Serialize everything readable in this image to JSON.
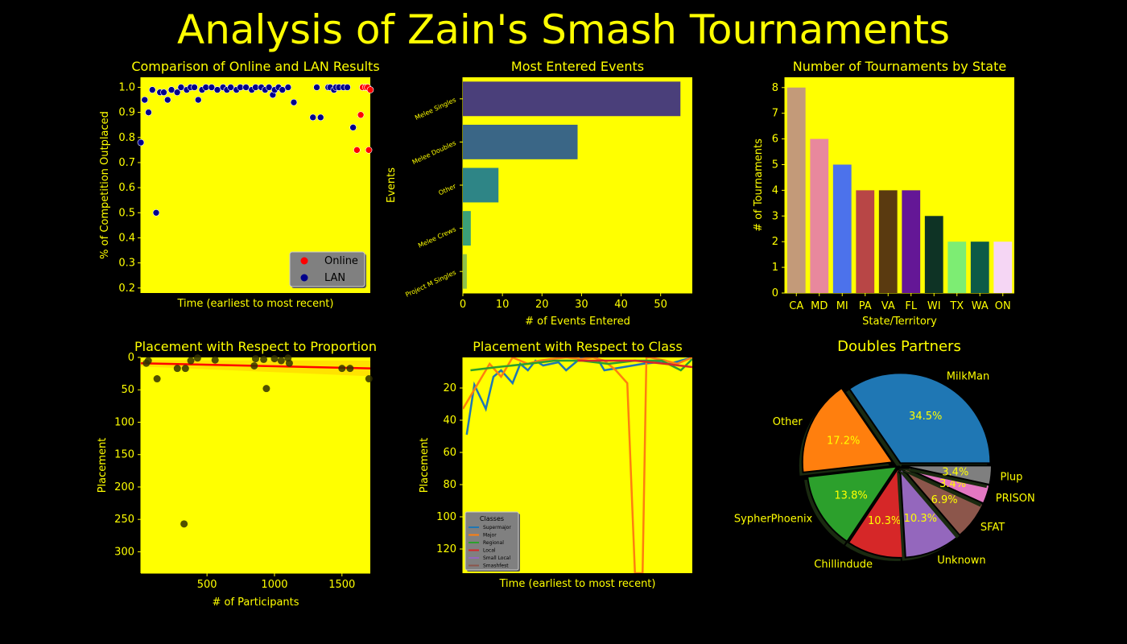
{
  "title": "Analysis of Zain's Smash Tournaments",
  "colors": {
    "text": "#ffff00",
    "panel": "#ffff00",
    "background": "#000000"
  },
  "chart_data": [
    {
      "type": "scatter",
      "title": "Comparison of Online and LAN Results",
      "xlabel": "Time (earliest to most recent)",
      "ylabel": "% of Competition Outplaced",
      "xlim": [
        0,
        60
      ],
      "ylim": [
        0.18,
        1.04
      ],
      "yticks": [
        "0.2",
        "0.3",
        "0.4",
        "0.5",
        "0.6",
        "0.7",
        "0.8",
        "0.9",
        "1.0"
      ],
      "legend": "lower-right",
      "series": [
        {
          "name": "Online",
          "color": "#ff0000",
          "points": [
            [
              56.5,
              0.75
            ],
            [
              57.5,
              0.89
            ],
            [
              58,
              1.0
            ],
            [
              58.8,
              1.0
            ],
            [
              59.3,
              1.0
            ],
            [
              59.6,
              0.75
            ],
            [
              60,
              0.99
            ]
          ]
        },
        {
          "name": "LAN",
          "color": "#00008b",
          "points": [
            [
              0,
              0.78
            ],
            [
              1,
              0.95
            ],
            [
              2,
              0.9
            ],
            [
              3,
              0.99
            ],
            [
              4,
              0.5
            ],
            [
              5,
              0.98
            ],
            [
              6,
              0.98
            ],
            [
              7,
              0.95
            ],
            [
              8,
              0.99
            ],
            [
              9.5,
              0.98
            ],
            [
              10.5,
              1.0
            ],
            [
              12,
              0.99
            ],
            [
              13,
              1.0
            ],
            [
              14,
              1.0
            ],
            [
              15,
              0.95
            ],
            [
              16,
              0.99
            ],
            [
              17,
              1.0
            ],
            [
              18.5,
              1.0
            ],
            [
              20,
              0.99
            ],
            [
              21.5,
              1.0
            ],
            [
              22.5,
              0.99
            ],
            [
              23.5,
              1.0
            ],
            [
              25,
              0.99
            ],
            [
              26,
              1.0
            ],
            [
              27.5,
              1.0
            ],
            [
              29,
              0.99
            ],
            [
              30,
              1.0
            ],
            [
              31.5,
              1.0
            ],
            [
              32.5,
              0.99
            ],
            [
              33.5,
              1.0
            ],
            [
              34.5,
              0.97
            ],
            [
              35,
              0.99
            ],
            [
              36,
              1.0
            ],
            [
              37,
              0.99
            ],
            [
              38.5,
              1.0
            ],
            [
              40,
              0.94
            ],
            [
              45,
              0.88
            ],
            [
              46,
              1.0
            ],
            [
              47,
              0.88
            ],
            [
              49,
              1.0
            ],
            [
              49.5,
              1.0
            ],
            [
              50.5,
              0.99
            ],
            [
              51,
              1.0
            ],
            [
              51.8,
              1.0
            ],
            [
              53,
              1.0
            ],
            [
              54,
              1.0
            ],
            [
              55.5,
              0.84
            ]
          ]
        }
      ]
    },
    {
      "type": "bar",
      "orientation": "horizontal",
      "title": "Most Entered Events",
      "xlabel": "# of Events Entered",
      "ylabel": "Events",
      "categories": [
        "Melee Singles",
        "Melee Doubles",
        "Other",
        "Melee Crews",
        "Project M Singles"
      ],
      "values": [
        55,
        29,
        9,
        2,
        1
      ],
      "colors": [
        "#4a3f7a",
        "#3a6686",
        "#2e8586",
        "#3ba078",
        "#8ec14a"
      ],
      "xlim": [
        0,
        58
      ],
      "xticks": [
        0,
        10,
        20,
        30,
        40,
        50
      ]
    },
    {
      "type": "bar",
      "title": "Number of Tournaments by State",
      "xlabel": "State/Territory",
      "ylabel": "# of Tournaments",
      "categories": [
        "CA",
        "MD",
        "MI",
        "PA",
        "VA",
        "FL",
        "WI",
        "TX",
        "WA",
        "ON"
      ],
      "values": [
        8,
        6,
        5,
        4,
        4,
        4,
        3,
        2,
        2,
        2
      ],
      "colors": [
        "#c39a79",
        "#e8889d",
        "#4c72eb",
        "#b84646",
        "#5a3a10",
        "#641796",
        "#0e3325",
        "#7ded73",
        "#0c5a47",
        "#f5d6f4"
      ],
      "ylim": [
        0,
        8.4
      ],
      "yticks": [
        0,
        1,
        2,
        3,
        4,
        5,
        6,
        7,
        8
      ]
    },
    {
      "type": "scatter",
      "title": "Placement with Respect to Proportion",
      "xlabel": "# of Participants",
      "ylabel": "Placement",
      "xlim": [
        10,
        1710
      ],
      "ylim": [
        333,
        0
      ],
      "xticks": [
        500,
        1000,
        1500
      ],
      "yticks": [
        0,
        50,
        100,
        150,
        200,
        250,
        300
      ],
      "points": [
        [
          50,
          9
        ],
        [
          65,
          5
        ],
        [
          130,
          33
        ],
        [
          280,
          17
        ],
        [
          340,
          17
        ],
        [
          330,
          257
        ],
        [
          380,
          5
        ],
        [
          430,
          1
        ],
        [
          560,
          4
        ],
        [
          850,
          13
        ],
        [
          860,
          2
        ],
        [
          920,
          3
        ],
        [
          940,
          48
        ],
        [
          1000,
          2
        ],
        [
          1050,
          5
        ],
        [
          1100,
          1
        ],
        [
          1110,
          9
        ],
        [
          1500,
          17
        ],
        [
          1560,
          17
        ],
        [
          1700,
          33
        ]
      ],
      "regression": [
        [
          10,
          9
        ],
        [
          1710,
          17
        ]
      ],
      "point_color": "#333300",
      "line_color": "#ff0000"
    },
    {
      "type": "line",
      "title": "Placement with Respect to Class",
      "xlabel": "Time (earliest to most recent)",
      "ylabel": "Placement",
      "xlim": [
        0,
        60
      ],
      "ylim": [
        135,
        1
      ],
      "yticks": [
        20,
        40,
        60,
        80,
        100,
        120
      ],
      "legend_title": "Classes",
      "legend": "lower-left",
      "series": [
        {
          "name": "Supermajor",
          "color": "#1f77b4",
          "x": [
            1,
            3,
            6,
            8,
            10,
            13,
            15,
            17,
            19,
            21,
            23,
            25,
            27,
            31,
            33,
            35,
            37,
            42,
            47,
            51,
            54,
            57,
            60
          ],
          "y": [
            49,
            18,
            33,
            13,
            9,
            17,
            5,
            9,
            3,
            6,
            5,
            4,
            9,
            1,
            1,
            1,
            9,
            7,
            5,
            4,
            5,
            3,
            1
          ]
        },
        {
          "name": "Major",
          "color": "#ff7f0e",
          "x": [
            0,
            4,
            7,
            10,
            13,
            17,
            20,
            23,
            27,
            31,
            34,
            37,
            40,
            43,
            45,
            47,
            48,
            49,
            53,
            56,
            59,
            60
          ],
          "y": [
            33,
            17,
            5,
            13,
            1,
            5,
            3,
            2,
            1,
            2,
            1,
            3,
            9,
            17,
            135,
            135,
            1,
            1,
            3,
            5,
            2,
            1
          ]
        },
        {
          "name": "Regional",
          "color": "#2ca02c",
          "x": [
            2,
            9,
            17,
            24,
            31,
            38,
            45,
            52,
            57,
            60
          ],
          "y": [
            9,
            7,
            5,
            3,
            3,
            5,
            3,
            3,
            9,
            2
          ]
        },
        {
          "name": "Local",
          "color": "#d62728",
          "x": [
            30,
            45,
            53,
            60
          ],
          "y": [
            3,
            3,
            5,
            7
          ]
        },
        {
          "name": "Small Local",
          "color": "#9467bd",
          "x": [],
          "y": []
        },
        {
          "name": "Smashfest",
          "color": "#8c564b",
          "x": [],
          "y": []
        }
      ]
    },
    {
      "type": "pie",
      "title": "Doubles Partners",
      "labels": [
        "MilkMan",
        "Other",
        "SypherPhoenix",
        "Chillindude",
        "Unknown",
        "SFAT",
        "PRISON",
        "Plup"
      ],
      "values": [
        34.5,
        17.2,
        13.8,
        10.3,
        10.3,
        6.9,
        3.4,
        3.4
      ],
      "pct_labels": [
        "34.5%",
        "17.2%",
        "13.8%",
        "10.3%",
        "10.3%",
        "6.9%",
        "3.4%",
        "3.4%"
      ],
      "colors": [
        "#1f77b4",
        "#ff7f0e",
        "#2ca02c",
        "#d62728",
        "#9467bd",
        "#8c564b",
        "#e377c2",
        "#7f7f7f"
      ]
    }
  ]
}
